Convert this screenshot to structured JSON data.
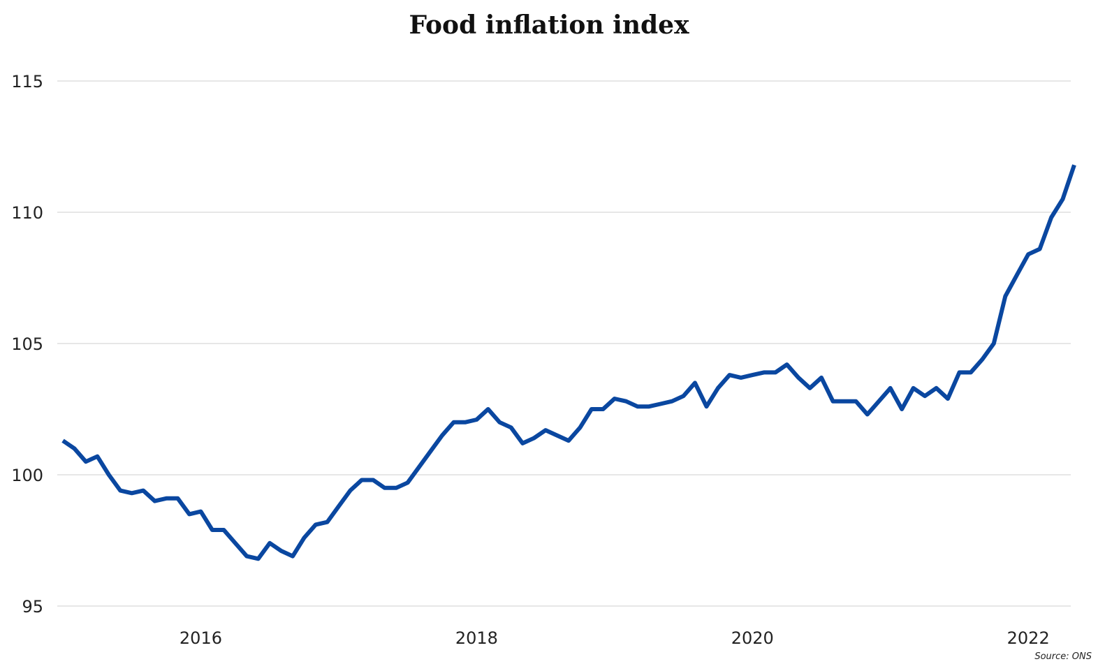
{
  "chart_data": {
    "type": "line",
    "title": "Food inflation index",
    "xlabel": "",
    "ylabel": "",
    "source": "Source: ONS",
    "ylim": [
      95,
      115
    ],
    "yticks": [
      "95",
      "100",
      "105",
      "110",
      "115"
    ],
    "xlim": [
      "2015-01",
      "2022-05"
    ],
    "xticks": [
      {
        "label": "2016",
        "at": "2016-01"
      },
      {
        "label": "2018",
        "at": "2018-01"
      },
      {
        "label": "2020",
        "at": "2020-01"
      },
      {
        "label": "2022",
        "at": "2022-01"
      }
    ],
    "grid": "horizontal",
    "legend": "none",
    "line_color": "#0a47a0",
    "series": [
      {
        "x": [
          "2015-01",
          "2015-02",
          "2015-03",
          "2015-04",
          "2015-05",
          "2015-06",
          "2015-07",
          "2015-08",
          "2015-09",
          "2015-10",
          "2015-11",
          "2015-12",
          "2016-01",
          "2016-02",
          "2016-03",
          "2016-04",
          "2016-05",
          "2016-06",
          "2016-07",
          "2016-08",
          "2016-09",
          "2016-10",
          "2016-11",
          "2016-12",
          "2017-01",
          "2017-02",
          "2017-03",
          "2017-04",
          "2017-05",
          "2017-06",
          "2017-07",
          "2017-08",
          "2017-09",
          "2017-10",
          "2017-11",
          "2017-12",
          "2018-01",
          "2018-02",
          "2018-03",
          "2018-04",
          "2018-05",
          "2018-06",
          "2018-07",
          "2018-08",
          "2018-09",
          "2018-10",
          "2018-11",
          "2018-12",
          "2019-01",
          "2019-02",
          "2019-03",
          "2019-04",
          "2019-05",
          "2019-06",
          "2019-07",
          "2019-08",
          "2019-09",
          "2019-10",
          "2019-11",
          "2019-12",
          "2020-01",
          "2020-02",
          "2020-03",
          "2020-04",
          "2020-05",
          "2020-06",
          "2020-07",
          "2020-08",
          "2020-09",
          "2020-10",
          "2020-11",
          "2020-12",
          "2021-01",
          "2021-02",
          "2021-03",
          "2021-04",
          "2021-05",
          "2021-06",
          "2021-07",
          "2021-08",
          "2021-09",
          "2021-10",
          "2021-11",
          "2021-12",
          "2022-01",
          "2022-02",
          "2022-03",
          "2022-04",
          "2022-05"
        ],
        "values": [
          101.3,
          101.0,
          100.5,
          100.7,
          100.0,
          99.4,
          99.3,
          99.4,
          99.0,
          99.1,
          99.1,
          98.5,
          98.6,
          97.9,
          97.9,
          97.4,
          96.9,
          96.8,
          97.4,
          97.1,
          96.9,
          97.6,
          98.1,
          98.2,
          98.8,
          99.4,
          99.8,
          99.8,
          99.5,
          99.5,
          99.7,
          100.3,
          100.9,
          101.5,
          102.0,
          102.0,
          102.1,
          102.5,
          102.0,
          101.8,
          101.2,
          101.4,
          101.7,
          101.5,
          101.3,
          101.8,
          102.5,
          102.5,
          102.9,
          102.8,
          102.6,
          102.6,
          102.7,
          102.8,
          103.0,
          103.5,
          102.6,
          103.3,
          103.8,
          103.7,
          103.8,
          103.9,
          103.9,
          104.2,
          103.7,
          103.3,
          103.7,
          102.8,
          102.8,
          102.8,
          102.3,
          102.8,
          103.3,
          102.5,
          103.3,
          103.0,
          103.3,
          102.9,
          103.9,
          103.9,
          104.4,
          105.0,
          106.8,
          107.6,
          108.4,
          108.6,
          109.8,
          110.5,
          111.8
        ]
      }
    ]
  }
}
